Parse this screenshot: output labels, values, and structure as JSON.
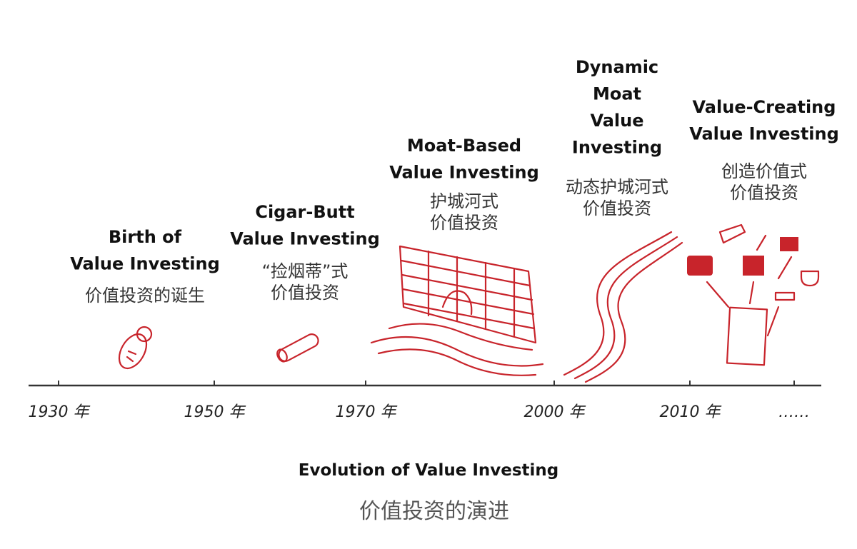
{
  "stages": [
    {
      "title_lines": [
        "Birth of",
        "Value Investing"
      ],
      "subtitle_lines": [
        "价值投资的诞生"
      ]
    },
    {
      "title_lines": [
        "Cigar-Butt",
        "Value Investing"
      ],
      "subtitle_lines": [
        "“捡烟蒂”式",
        "价值投资"
      ]
    },
    {
      "title_lines": [
        "Moat-Based",
        "Value Investing"
      ],
      "subtitle_lines": [
        "护城河式",
        "价值投资"
      ]
    },
    {
      "title_lines": [
        "Dynamic",
        "Moat",
        "Value",
        "Investing"
      ],
      "subtitle_lines": [
        "动态护城河式",
        "价值投资"
      ]
    },
    {
      "title_lines": [
        "Value-Creating",
        "Value Investing"
      ],
      "subtitle_lines": [
        "创造价值式",
        "价值投资"
      ]
    }
  ],
  "timeline": [
    "1930 年",
    "1950 年",
    "1970 年",
    "2000 年",
    "2010 年",
    "……"
  ],
  "caption": {
    "title": "Evolution of Value Investing",
    "subtitle": "价值投资的演进"
  }
}
